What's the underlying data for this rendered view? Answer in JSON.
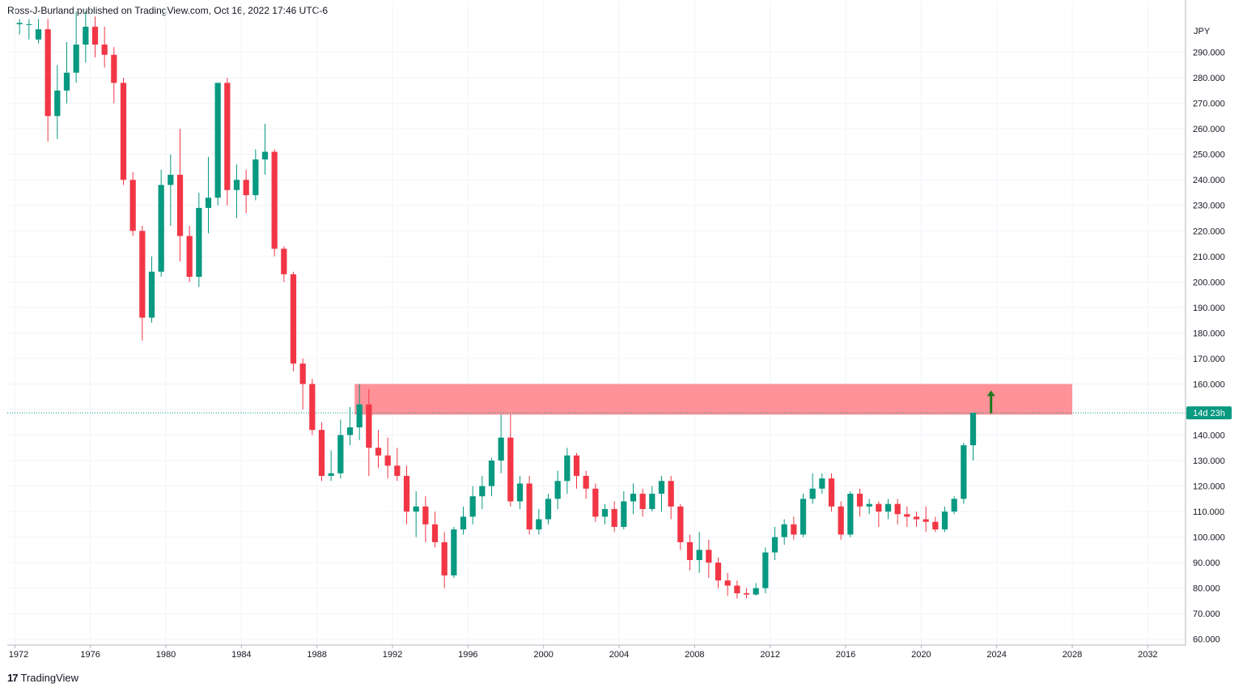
{
  "header": {
    "text": "Ross-J-Burland published on TradingView.com, Oct 16, 2022 17:46 UTC-6"
  },
  "footer": {
    "logo_mark": "17",
    "brand": "TradingView"
  },
  "price_tag": {
    "text": "14d 23h",
    "color": "#089981"
  },
  "colors": {
    "up": "#089981",
    "down": "#f23645",
    "zone": "#ff8c94",
    "grid": "#f0f3fa",
    "arrow": "#1e7b1e"
  },
  "chart_data": {
    "type": "candlestick",
    "currency_label": "JPY",
    "interval_years": 0.5,
    "x_ticks": [
      "1972",
      "1976",
      "1980",
      "1984",
      "1988",
      "1992",
      "1996",
      "2000",
      "2004",
      "2008",
      "2012",
      "2016",
      "2020",
      "2024",
      "2028",
      "2032"
    ],
    "y_ticks": [
      "60.000",
      "70.000",
      "80.000",
      "90.000",
      "100.000",
      "110.000",
      "120.000",
      "130.000",
      "140.000",
      "150.000",
      "160.000",
      "170.000",
      "180.000",
      "190.000",
      "200.000",
      "210.000",
      "220.000",
      "230.000",
      "240.000",
      "250.000",
      "260.000",
      "270.000",
      "280.000",
      "290.000"
    ],
    "xlim": [
      1971.6,
      2034.0
    ],
    "ylim": [
      57.7,
      303.5
    ],
    "current_price": 148.7,
    "resistance_zone": {
      "from": 1990.0,
      "to": 2028.0,
      "low": 148.0,
      "high": 160.0
    },
    "arrow": {
      "x": 2023.7,
      "from": 148.5,
      "to": 157.5
    },
    "candles": [
      [
        1972.0,
        301.0,
        301.5,
        297.0,
        303.0
      ],
      [
        1972.5,
        301.0,
        301.0,
        295.0,
        303.0
      ],
      [
        1973.0,
        295.0,
        299.0,
        293.5,
        303.0
      ],
      [
        1973.5,
        299.0,
        265.0,
        255.0,
        303.0
      ],
      [
        1974.0,
        265.0,
        275.0,
        256.0,
        285.0
      ],
      [
        1974.5,
        275.0,
        282.0,
        270.0,
        294.0
      ],
      [
        1975.0,
        282.0,
        293.0,
        278.0,
        306.0
      ],
      [
        1975.5,
        293.0,
        300.0,
        286.0,
        306.0
      ],
      [
        1976.0,
        300.0,
        293.0,
        288.0,
        304.0
      ],
      [
        1976.5,
        293.0,
        289.0,
        284.0,
        300.0
      ],
      [
        1977.0,
        289.0,
        278.0,
        270.0,
        292.0
      ],
      [
        1977.5,
        278.0,
        240.0,
        238.0,
        280.0
      ],
      [
        1978.0,
        240.0,
        220.0,
        218.0,
        243.0
      ],
      [
        1978.5,
        220.0,
        186.0,
        177.0,
        222.0
      ],
      [
        1979.0,
        186.0,
        204.0,
        184.0,
        210.0
      ],
      [
        1979.5,
        204.0,
        238.0,
        202.0,
        244.0
      ],
      [
        1980.0,
        238.0,
        242.0,
        222.0,
        250.0
      ],
      [
        1980.5,
        242.0,
        218.0,
        208.0,
        260.0
      ],
      [
        1981.0,
        218.0,
        202.0,
        200.0,
        222.0
      ],
      [
        1981.5,
        202.0,
        229.0,
        198.0,
        235.0
      ],
      [
        1982.0,
        229.0,
        233.0,
        219.0,
        249.0
      ],
      [
        1982.5,
        233.0,
        278.0,
        230.0,
        278.0
      ],
      [
        1983.0,
        278.0,
        236.0,
        230.0,
        280.0
      ],
      [
        1983.5,
        236.0,
        240.0,
        225.0,
        246.0
      ],
      [
        1984.0,
        240.0,
        234.0,
        227.0,
        244.0
      ],
      [
        1984.5,
        234.0,
        248.0,
        232.0,
        252.0
      ],
      [
        1985.0,
        248.0,
        251.0,
        242.0,
        262.0
      ],
      [
        1985.5,
        251.0,
        213.0,
        210.0,
        252.0
      ],
      [
        1986.0,
        213.0,
        203.0,
        200.0,
        214.0
      ],
      [
        1986.5,
        203.0,
        168.0,
        165.0,
        204.0
      ],
      [
        1987.0,
        168.0,
        160.0,
        150.0,
        170.0
      ],
      [
        1987.5,
        160.0,
        142.0,
        140.0,
        162.0
      ],
      [
        1988.0,
        142.0,
        124.0,
        122.0,
        145.0
      ],
      [
        1988.5,
        124.0,
        125.0,
        122.0,
        134.0
      ],
      [
        1989.0,
        125.0,
        140.0,
        123.0,
        146.0
      ],
      [
        1989.5,
        140.0,
        143.0,
        136.0,
        151.0
      ],
      [
        1990.0,
        143.0,
        152.0,
        138.0,
        160.0
      ],
      [
        1990.5,
        152.0,
        135.0,
        124.0,
        158.0
      ],
      [
        1991.0,
        135.0,
        132.0,
        127.0,
        142.0
      ],
      [
        1991.5,
        132.0,
        128.0,
        123.0,
        139.0
      ],
      [
        1992.0,
        128.0,
        124.0,
        122.0,
        135.0
      ],
      [
        1992.5,
        124.0,
        110.0,
        105.0,
        128.0
      ],
      [
        1993.0,
        110.0,
        112.0,
        100.0,
        118.0
      ],
      [
        1993.5,
        112.0,
        105.0,
        98.0,
        116.0
      ],
      [
        1994.0,
        105.0,
        98.0,
        96.0,
        110.0
      ],
      [
        1994.5,
        98.0,
        85.0,
        80.0,
        102.0
      ],
      [
        1995.0,
        85.0,
        103.0,
        84.0,
        104.0
      ],
      [
        1995.5,
        103.0,
        108.0,
        101.0,
        112.0
      ],
      [
        1996.0,
        108.0,
        116.0,
        105.0,
        120.0
      ],
      [
        1996.5,
        116.0,
        120.0,
        111.0,
        124.0
      ],
      [
        1997.0,
        120.0,
        130.0,
        116.0,
        131.0
      ],
      [
        1997.5,
        130.0,
        139.0,
        125.0,
        148.0
      ],
      [
        1998.0,
        139.0,
        114.0,
        112.0,
        148.0
      ],
      [
        1998.5,
        114.0,
        121.0,
        111.0,
        124.0
      ],
      [
        1999.0,
        121.0,
        103.0,
        101.0,
        124.0
      ],
      [
        1999.5,
        103.0,
        107.0,
        101.0,
        111.0
      ],
      [
        2000.0,
        107.0,
        115.0,
        105.0,
        117.0
      ],
      [
        2000.5,
        115.0,
        122.0,
        111.0,
        126.0
      ],
      [
        2001.0,
        122.0,
        132.0,
        117.0,
        135.0
      ],
      [
        2001.5,
        132.0,
        124.0,
        119.0,
        133.0
      ],
      [
        2002.0,
        124.0,
        119.0,
        115.0,
        126.0
      ],
      [
        2002.5,
        119.0,
        108.0,
        106.0,
        121.0
      ],
      [
        2003.0,
        108.0,
        111.0,
        105.0,
        113.0
      ],
      [
        2003.5,
        111.0,
        104.0,
        102.0,
        114.0
      ],
      [
        2004.0,
        104.0,
        114.0,
        103.0,
        118.0
      ],
      [
        2004.5,
        114.0,
        117.0,
        109.0,
        121.0
      ],
      [
        2005.0,
        117.0,
        111.0,
        108.0,
        119.0
      ],
      [
        2005.5,
        111.0,
        117.0,
        110.0,
        120.0
      ],
      [
        2006.0,
        117.0,
        122.0,
        110.0,
        124.0
      ],
      [
        2006.5,
        122.0,
        112.0,
        107.0,
        124.0
      ],
      [
        2007.0,
        112.0,
        98.0,
        95.0,
        113.0
      ],
      [
        2007.5,
        98.0,
        91.0,
        87.0,
        101.0
      ],
      [
        2008.0,
        91.0,
        95.0,
        86.0,
        102.0
      ],
      [
        2008.5,
        95.0,
        90.0,
        84.0,
        99.0
      ],
      [
        2009.0,
        90.0,
        83.0,
        80.0,
        92.0
      ],
      [
        2009.5,
        83.0,
        81.0,
        77.0,
        86.0
      ],
      [
        2010.0,
        81.0,
        78.0,
        76.0,
        83.0
      ],
      [
        2010.5,
        78.0,
        77.5,
        76.0,
        80.0
      ],
      [
        2011.0,
        77.5,
        80.0,
        77.0,
        82.0
      ],
      [
        2011.5,
        80.0,
        94.0,
        78.0,
        96.0
      ],
      [
        2012.0,
        94.0,
        100.0,
        91.0,
        104.0
      ],
      [
        2012.5,
        100.0,
        105.0,
        97.0,
        107.0
      ],
      [
        2013.0,
        105.0,
        101.0,
        99.0,
        108.0
      ],
      [
        2013.5,
        101.0,
        115.0,
        100.0,
        117.0
      ],
      [
        2014.0,
        115.0,
        119.0,
        113.0,
        125.0
      ],
      [
        2014.5,
        119.0,
        123.0,
        117.0,
        125.0
      ],
      [
        2015.0,
        123.0,
        112.0,
        110.0,
        125.0
      ],
      [
        2015.5,
        112.0,
        101.0,
        99.0,
        114.0
      ],
      [
        2016.0,
        101.0,
        117.0,
        100.0,
        118.0
      ],
      [
        2016.5,
        117.0,
        112.0,
        108.0,
        119.0
      ],
      [
        2017.0,
        112.0,
        113.0,
        109.0,
        115.0
      ],
      [
        2017.5,
        113.0,
        110.0,
        104.0,
        114.0
      ],
      [
        2018.0,
        110.0,
        113.0,
        107.0,
        115.0
      ],
      [
        2018.5,
        113.0,
        109.0,
        105.0,
        115.0
      ],
      [
        2019.0,
        109.0,
        108.0,
        104.0,
        112.0
      ],
      [
        2019.5,
        108.0,
        107.0,
        104.0,
        110.0
      ],
      [
        2020.0,
        107.0,
        106.0,
        102.0,
        112.0
      ],
      [
        2020.5,
        106.0,
        103.0,
        102.0,
        108.0
      ],
      [
        2021.0,
        103.0,
        110.0,
        102.0,
        112.0
      ],
      [
        2021.5,
        110.0,
        115.0,
        109.0,
        116.0
      ],
      [
        2022.0,
        115.0,
        136.0,
        113.0,
        137.0
      ],
      [
        2022.5,
        136.0,
        148.7,
        130.0,
        148.7
      ]
    ]
  }
}
